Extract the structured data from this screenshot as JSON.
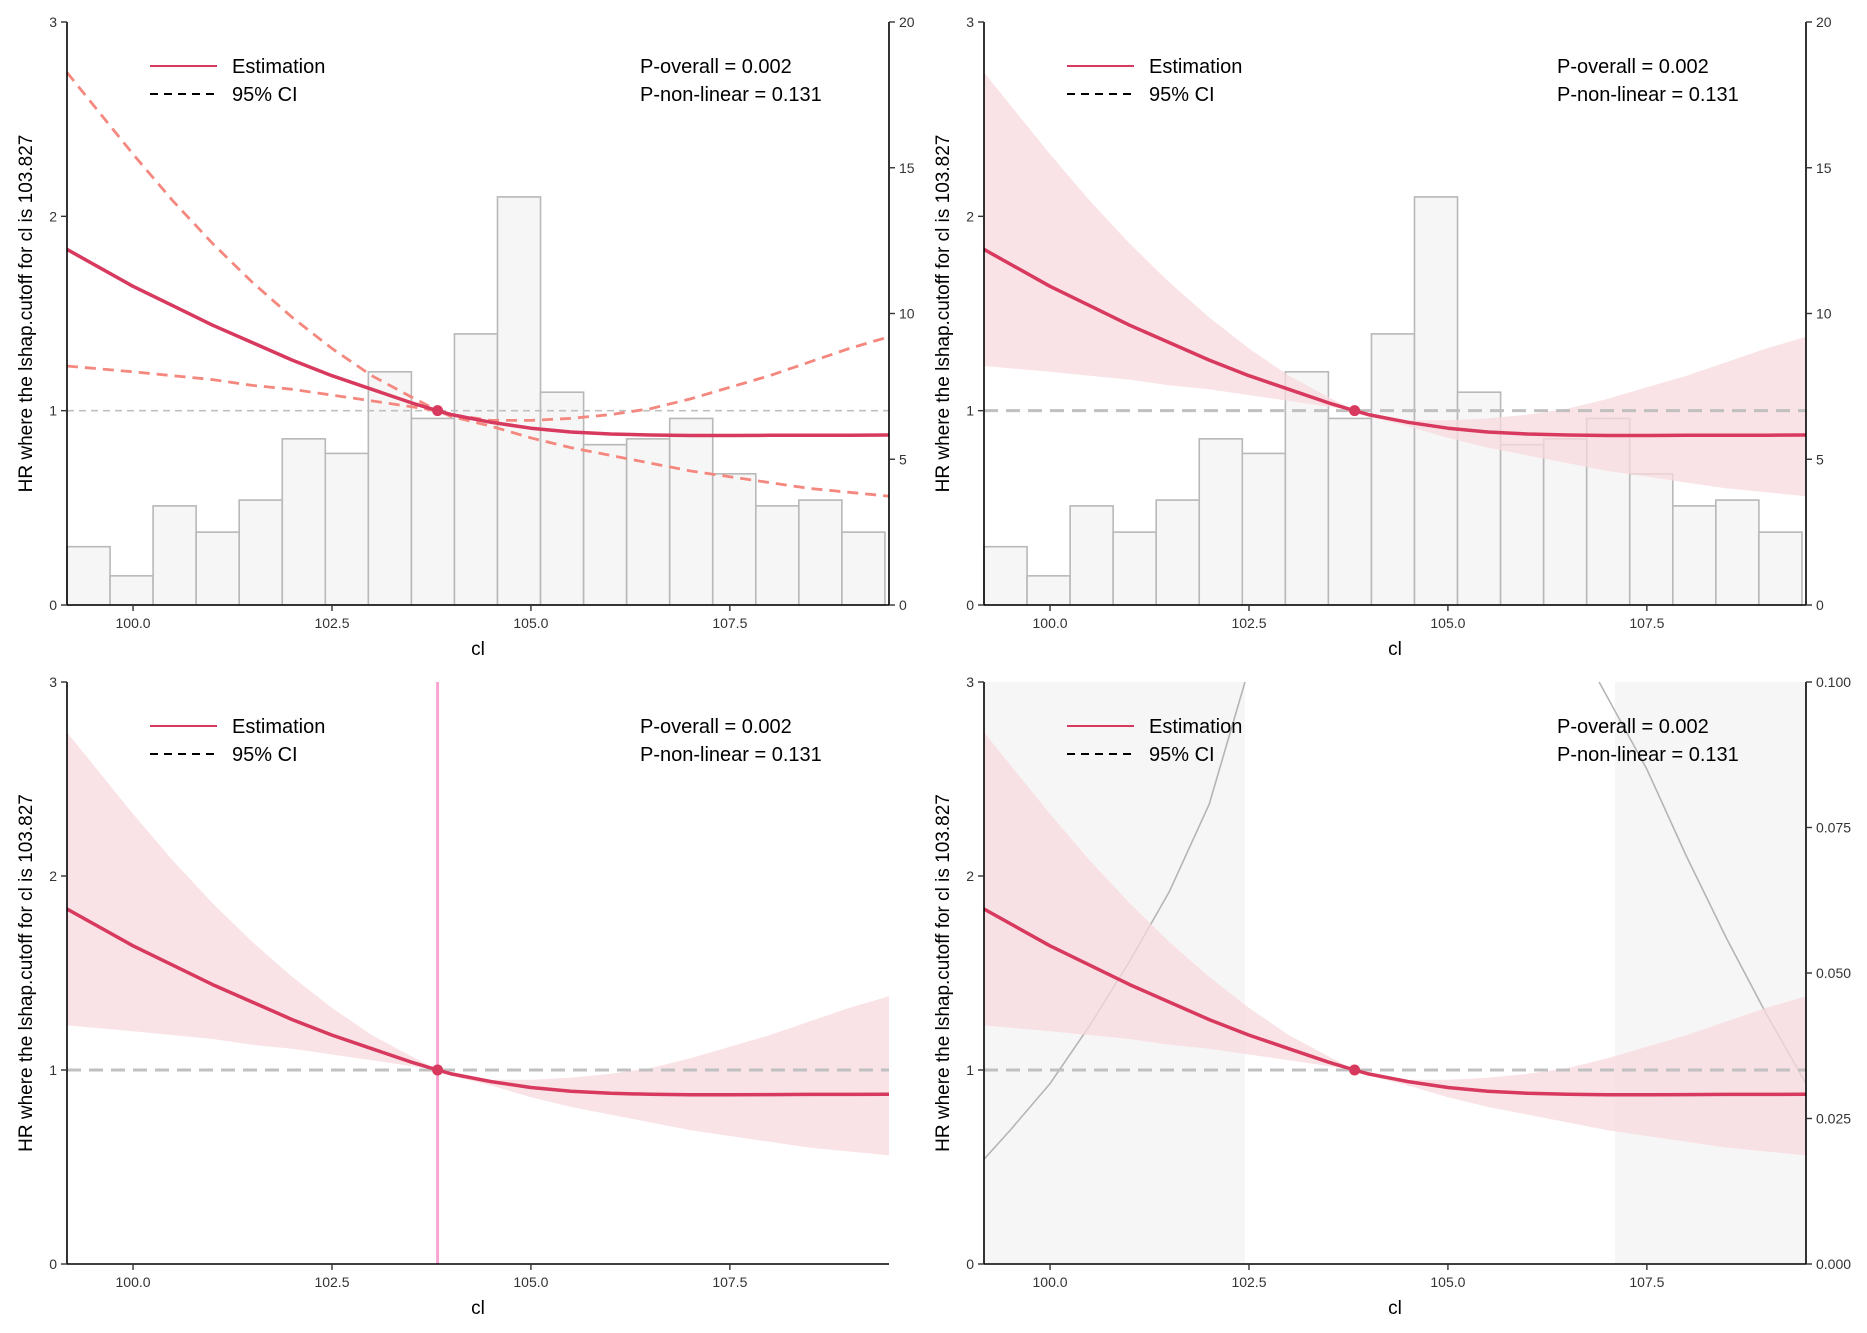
{
  "colors": {
    "estimate": "#d8395e",
    "ci_line": "#f4877e",
    "ci_band": "#f8dadd",
    "hist_fill": "#f7f6f7",
    "hist_stroke": "#b8b8b8",
    "reference": "#c0c0c0",
    "cutoff_line": "#f7a6d2",
    "density": "#b5b5b5"
  },
  "legend": {
    "estimation": "Estimation",
    "ci": "95% CI"
  },
  "stats": {
    "p_overall": "P-overall = 0.002",
    "p_nonlinear": "P-non-linear = 0.131"
  },
  "chart_data": [
    {
      "type": "line",
      "panel": "top-left",
      "ci_style": "dashed-lines",
      "xlabel": "cl",
      "ylabel": "HR where the lshap.cutoff for cl is 103.827",
      "xlim": [
        99.17,
        109.5
      ],
      "ylim": [
        0,
        3
      ],
      "xticks": [
        100.0,
        102.5,
        105.0,
        107.5
      ],
      "xtick_labels": [
        "100.0",
        "102.5",
        "105.0",
        "107.5"
      ],
      "yticks": [
        0,
        1,
        2,
        3
      ],
      "ytick_labels": [
        "0",
        "1",
        "2",
        "3"
      ],
      "cutoff": 103.827,
      "estimate": {
        "x": [
          99.17,
          100.0,
          100.5,
          101.0,
          101.5,
          102.0,
          102.5,
          103.0,
          103.5,
          103.827,
          104.0,
          104.5,
          105.0,
          105.5,
          106.0,
          106.5,
          107.0,
          107.5,
          108.0,
          108.5,
          109.0,
          109.5
        ],
        "y": [
          1.83,
          1.64,
          1.54,
          1.44,
          1.35,
          1.26,
          1.18,
          1.11,
          1.04,
          1.0,
          0.98,
          0.94,
          0.91,
          0.89,
          0.88,
          0.875,
          0.872,
          0.872,
          0.873,
          0.874,
          0.874,
          0.875
        ]
      },
      "ci_upper": {
        "x": [
          99.17,
          100.0,
          100.5,
          101.0,
          101.5,
          102.0,
          102.5,
          103.0,
          103.5,
          103.827,
          104.0,
          104.5,
          105.0,
          105.5,
          106.0,
          106.5,
          107.0,
          107.5,
          108.0,
          108.5,
          109.0,
          109.5
        ],
        "y": [
          2.74,
          2.32,
          2.08,
          1.86,
          1.66,
          1.48,
          1.32,
          1.18,
          1.07,
          1.0,
          0.98,
          0.95,
          0.95,
          0.96,
          0.98,
          1.01,
          1.06,
          1.12,
          1.18,
          1.25,
          1.32,
          1.38
        ]
      },
      "ci_lower": {
        "x": [
          99.17,
          100.0,
          100.5,
          101.0,
          101.5,
          102.0,
          102.5,
          103.0,
          103.5,
          103.827,
          104.0,
          104.5,
          105.0,
          105.5,
          106.0,
          106.5,
          107.0,
          107.5,
          108.0,
          108.5,
          109.0,
          109.5
        ],
        "y": [
          1.23,
          1.2,
          1.18,
          1.16,
          1.13,
          1.11,
          1.08,
          1.05,
          1.02,
          1.0,
          0.97,
          0.92,
          0.86,
          0.81,
          0.77,
          0.73,
          0.69,
          0.66,
          0.63,
          0.6,
          0.58,
          0.56
        ]
      },
      "secondary": {
        "kind": "histogram",
        "ylim": [
          0,
          20
        ],
        "yticks": [
          0,
          5,
          10,
          15,
          20
        ],
        "ytick_labels": [
          "0",
          "5",
          "10",
          "15",
          "20"
        ],
        "bin_start": 99.17,
        "bin_width": 0.541,
        "counts": [
          2,
          1,
          3.4,
          2.5,
          3.6,
          5.7,
          5.2,
          8,
          6.4,
          9.3,
          14,
          7.3,
          5.5,
          5.7,
          6.4,
          4.5,
          3.4,
          3.6,
          2.5
        ]
      }
    },
    {
      "type": "line",
      "panel": "top-right",
      "ci_style": "band",
      "xlabel": "cl",
      "ylabel": "HR where the lshap.cutoff for cl is 103.827",
      "xlim": [
        99.17,
        109.5
      ],
      "ylim": [
        0,
        3
      ],
      "xticks": [
        100.0,
        102.5,
        105.0,
        107.5
      ],
      "xtick_labels": [
        "100.0",
        "102.5",
        "105.0",
        "107.5"
      ],
      "yticks": [
        0,
        1,
        2,
        3
      ],
      "ytick_labels": [
        "0",
        "1",
        "2",
        "3"
      ],
      "cutoff": 103.827,
      "estimate": {
        "x": [
          99.17,
          100.0,
          100.5,
          101.0,
          101.5,
          102.0,
          102.5,
          103.0,
          103.5,
          103.827,
          104.0,
          104.5,
          105.0,
          105.5,
          106.0,
          106.5,
          107.0,
          107.5,
          108.0,
          108.5,
          109.0,
          109.5
        ],
        "y": [
          1.83,
          1.64,
          1.54,
          1.44,
          1.35,
          1.26,
          1.18,
          1.11,
          1.04,
          1.0,
          0.98,
          0.94,
          0.91,
          0.89,
          0.88,
          0.875,
          0.872,
          0.872,
          0.873,
          0.874,
          0.874,
          0.875
        ]
      },
      "ci_upper": {
        "x": [
          99.17,
          100.0,
          100.5,
          101.0,
          101.5,
          102.0,
          102.5,
          103.0,
          103.5,
          103.827,
          104.0,
          104.5,
          105.0,
          105.5,
          106.0,
          106.5,
          107.0,
          107.5,
          108.0,
          108.5,
          109.0,
          109.5
        ],
        "y": [
          2.74,
          2.32,
          2.08,
          1.86,
          1.66,
          1.48,
          1.32,
          1.18,
          1.07,
          1.0,
          0.98,
          0.95,
          0.95,
          0.96,
          0.98,
          1.01,
          1.06,
          1.12,
          1.18,
          1.25,
          1.32,
          1.38
        ]
      },
      "ci_lower": {
        "x": [
          99.17,
          100.0,
          100.5,
          101.0,
          101.5,
          102.0,
          102.5,
          103.0,
          103.5,
          103.827,
          104.0,
          104.5,
          105.0,
          105.5,
          106.0,
          106.5,
          107.0,
          107.5,
          108.0,
          108.5,
          109.0,
          109.5
        ],
        "y": [
          1.23,
          1.2,
          1.18,
          1.16,
          1.13,
          1.11,
          1.08,
          1.05,
          1.02,
          1.0,
          0.97,
          0.92,
          0.86,
          0.81,
          0.77,
          0.73,
          0.69,
          0.66,
          0.63,
          0.6,
          0.58,
          0.56
        ]
      },
      "secondary": {
        "kind": "histogram",
        "ylim": [
          0,
          20
        ],
        "yticks": [
          0,
          5,
          10,
          15,
          20
        ],
        "ytick_labels": [
          "0",
          "5",
          "10",
          "15",
          "20"
        ],
        "bin_start": 99.17,
        "bin_width": 0.541,
        "counts": [
          2,
          1,
          3.4,
          2.5,
          3.6,
          5.7,
          5.2,
          8,
          6.4,
          9.3,
          14,
          7.3,
          5.5,
          5.7,
          6.4,
          4.5,
          3.4,
          3.6,
          2.5
        ]
      }
    },
    {
      "type": "line",
      "panel": "bottom-left",
      "ci_style": "band",
      "xlabel": "cl",
      "ylabel": "HR where the lshap.cutoff for cl is 103.827",
      "xlim": [
        99.17,
        109.5
      ],
      "ylim": [
        0,
        3
      ],
      "xticks": [
        100.0,
        102.5,
        105.0,
        107.5
      ],
      "xtick_labels": [
        "100.0",
        "102.5",
        "105.0",
        "107.5"
      ],
      "yticks": [
        0,
        1,
        2,
        3
      ],
      "ytick_labels": [
        "0",
        "1",
        "2",
        "3"
      ],
      "cutoff": 103.827,
      "cutoff_vline": true,
      "estimate": {
        "x": [
          99.17,
          100.0,
          100.5,
          101.0,
          101.5,
          102.0,
          102.5,
          103.0,
          103.5,
          103.827,
          104.0,
          104.5,
          105.0,
          105.5,
          106.0,
          106.5,
          107.0,
          107.5,
          108.0,
          108.5,
          109.0,
          109.5
        ],
        "y": [
          1.83,
          1.64,
          1.54,
          1.44,
          1.35,
          1.26,
          1.18,
          1.11,
          1.04,
          1.0,
          0.98,
          0.94,
          0.91,
          0.89,
          0.88,
          0.875,
          0.872,
          0.872,
          0.873,
          0.874,
          0.874,
          0.875
        ]
      },
      "ci_upper": {
        "x": [
          99.17,
          100.0,
          100.5,
          101.0,
          101.5,
          102.0,
          102.5,
          103.0,
          103.5,
          103.827,
          104.0,
          104.5,
          105.0,
          105.5,
          106.0,
          106.5,
          107.0,
          107.5,
          108.0,
          108.5,
          109.0,
          109.5
        ],
        "y": [
          2.74,
          2.32,
          2.08,
          1.86,
          1.66,
          1.48,
          1.32,
          1.18,
          1.07,
          1.0,
          0.98,
          0.95,
          0.95,
          0.96,
          0.98,
          1.01,
          1.06,
          1.12,
          1.18,
          1.25,
          1.32,
          1.38
        ]
      },
      "ci_lower": {
        "x": [
          99.17,
          100.0,
          100.5,
          101.0,
          101.5,
          102.0,
          102.5,
          103.0,
          103.5,
          103.827,
          104.0,
          104.5,
          105.0,
          105.5,
          106.0,
          106.5,
          107.0,
          107.5,
          108.0,
          108.5,
          109.0,
          109.5
        ],
        "y": [
          1.23,
          1.2,
          1.18,
          1.16,
          1.13,
          1.11,
          1.08,
          1.05,
          1.02,
          1.0,
          0.97,
          0.92,
          0.86,
          0.81,
          0.77,
          0.73,
          0.69,
          0.66,
          0.63,
          0.6,
          0.58,
          0.56
        ]
      }
    },
    {
      "type": "line",
      "panel": "bottom-right",
      "ci_style": "band",
      "xlabel": "cl",
      "ylabel": "HR where the lshap.cutoff for cl is 103.827",
      "xlim": [
        99.17,
        109.5
      ],
      "ylim": [
        0,
        3
      ],
      "xticks": [
        100.0,
        102.5,
        105.0,
        107.5
      ],
      "xtick_labels": [
        "100.0",
        "102.5",
        "105.0",
        "107.5"
      ],
      "yticks": [
        0,
        1,
        2,
        3
      ],
      "ytick_labels": [
        "0",
        "1",
        "2",
        "3"
      ],
      "cutoff": 103.827,
      "estimate": {
        "x": [
          99.17,
          100.0,
          100.5,
          101.0,
          101.5,
          102.0,
          102.5,
          103.0,
          103.5,
          103.827,
          104.0,
          104.5,
          105.0,
          105.5,
          106.0,
          106.5,
          107.0,
          107.5,
          108.0,
          108.5,
          109.0,
          109.5
        ],
        "y": [
          1.83,
          1.64,
          1.54,
          1.44,
          1.35,
          1.26,
          1.18,
          1.11,
          1.04,
          1.0,
          0.98,
          0.94,
          0.91,
          0.89,
          0.88,
          0.875,
          0.872,
          0.872,
          0.873,
          0.874,
          0.874,
          0.875
        ]
      },
      "ci_upper": {
        "x": [
          99.17,
          100.0,
          100.5,
          101.0,
          101.5,
          102.0,
          102.5,
          103.0,
          103.5,
          103.827,
          104.0,
          104.5,
          105.0,
          105.5,
          106.0,
          106.5,
          107.0,
          107.5,
          108.0,
          108.5,
          109.0,
          109.5
        ],
        "y": [
          2.74,
          2.32,
          2.08,
          1.86,
          1.66,
          1.48,
          1.32,
          1.18,
          1.07,
          1.0,
          0.98,
          0.95,
          0.95,
          0.96,
          0.98,
          1.01,
          1.06,
          1.12,
          1.18,
          1.25,
          1.32,
          1.38
        ]
      },
      "ci_lower": {
        "x": [
          99.17,
          100.0,
          100.5,
          101.0,
          101.5,
          102.0,
          102.5,
          103.0,
          103.5,
          103.827,
          104.0,
          104.5,
          105.0,
          105.5,
          106.0,
          106.5,
          107.0,
          107.5,
          108.0,
          108.5,
          109.0,
          109.5
        ],
        "y": [
          1.23,
          1.2,
          1.18,
          1.16,
          1.13,
          1.11,
          1.08,
          1.05,
          1.02,
          1.0,
          0.97,
          0.92,
          0.86,
          0.81,
          0.77,
          0.73,
          0.69,
          0.66,
          0.63,
          0.6,
          0.58,
          0.56
        ]
      },
      "secondary": {
        "kind": "density",
        "ylim": [
          0,
          0.1
        ],
        "yticks": [
          0,
          0.025,
          0.05,
          0.075,
          0.1
        ],
        "ytick_labels": [
          "0.000",
          "0.025",
          "0.050",
          "0.075",
          "0.100"
        ],
        "shaded_regions": [
          [
            99.17,
            102.45
          ],
          [
            107.1,
            109.5
          ]
        ],
        "left_curve": {
          "x": [
            99.17,
            99.5,
            100.0,
            100.5,
            101.0,
            101.5,
            102.0,
            102.45
          ],
          "y": [
            0.018,
            0.023,
            0.031,
            0.041,
            0.052,
            0.064,
            0.079,
            0.1
          ]
        },
        "right_curve": {
          "x": [
            106.9,
            107.5,
            108.0,
            108.5,
            109.0,
            109.5
          ],
          "y": [
            0.1,
            0.085,
            0.07,
            0.056,
            0.043,
            0.031
          ]
        }
      }
    }
  ]
}
